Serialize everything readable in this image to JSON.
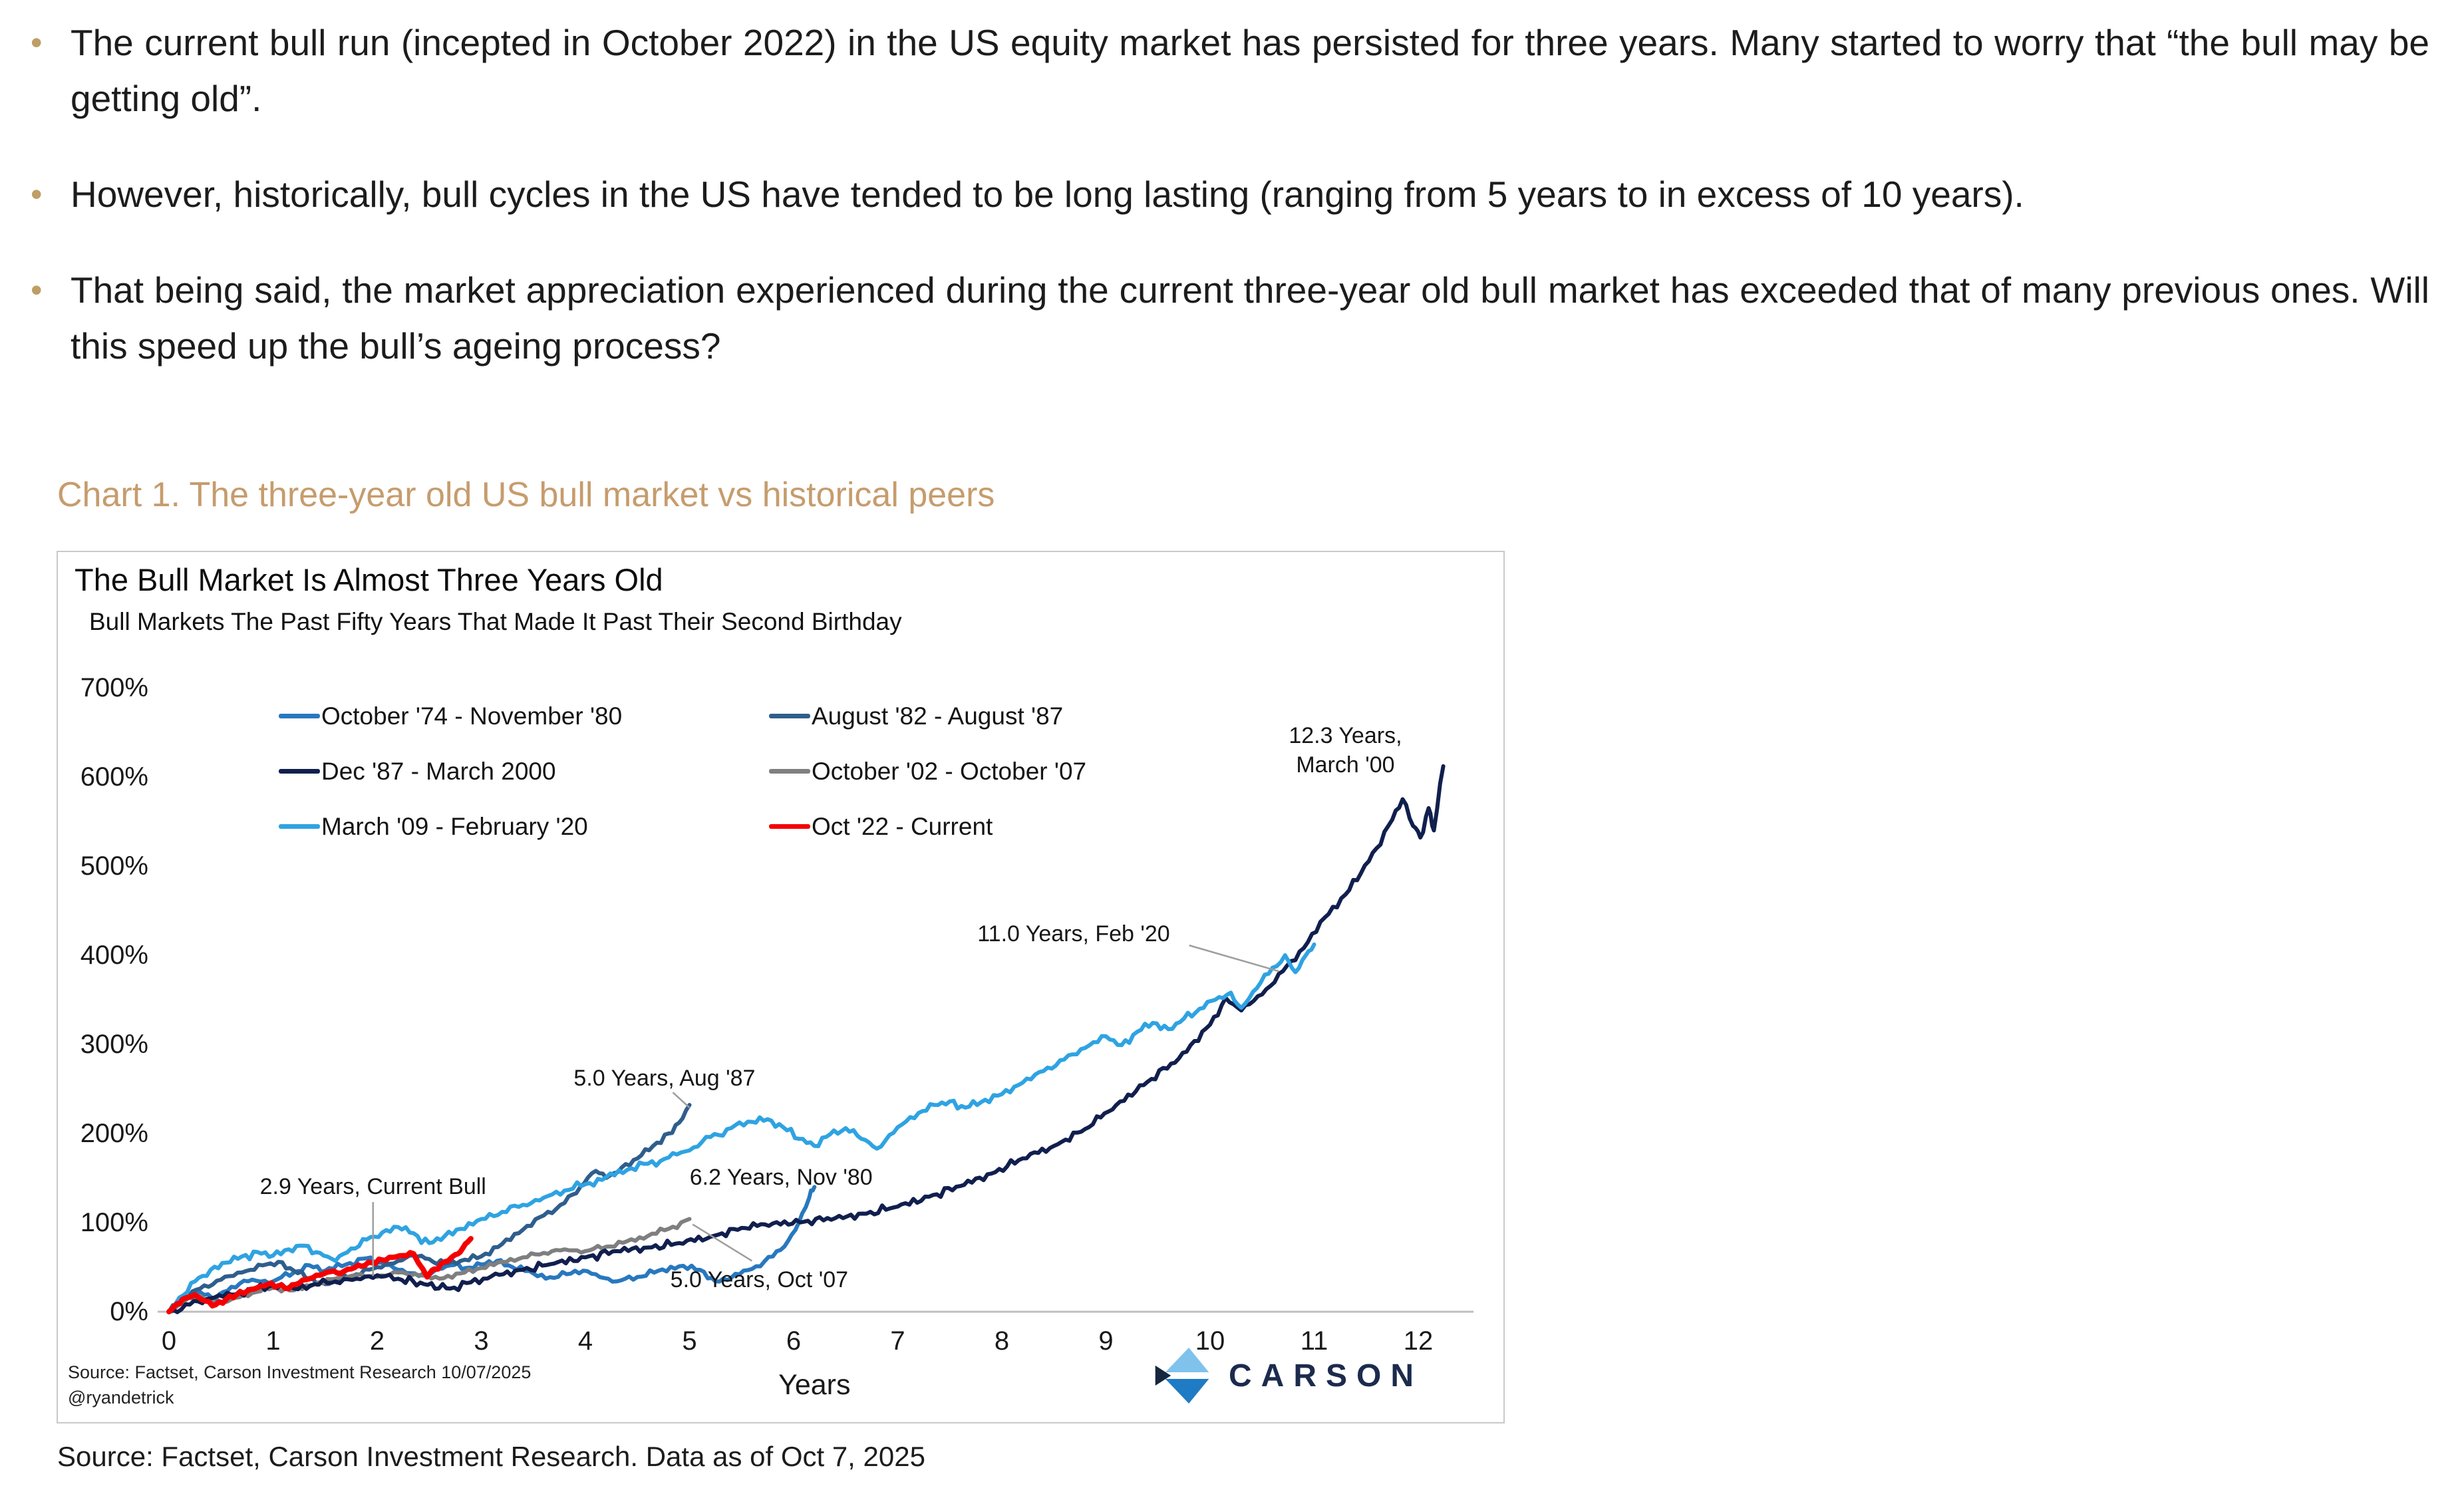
{
  "bullets": [
    "The current bull run (incepted in October 2022) in the US equity market has persisted for three years. Many started to worry that “the bull may be getting old”.",
    "However, historically, bull cycles in the US have tended to be long lasting (ranging from 5 years to in excess of 10 years).",
    "That being said, the market appreciation experienced during the current three-year old bull market has exceeded that of many previous ones. Will this speed up the bull’s ageing process?"
  ],
  "chart_caption": "Chart 1. The three-year old US bull market vs historical peers",
  "page_source": "Source: Factset, Carson Investment Research. Data as of Oct 7, 2025",
  "colors": {
    "bullet_marker": "#BE9E66",
    "caption": "#C69C6D",
    "axis_line": "#BFBFBF",
    "leader_line": "#9E9E9E",
    "chart_border": "#C9C9C9",
    "logo_navy": "#1C2B4D",
    "logo_light_blue": "#7FC2EC",
    "logo_mid_blue": "#1F7BC4",
    "logo_dark_navy": "#17263F"
  },
  "chart_data": {
    "type": "line",
    "title": "The Bull Market Is Almost Three Years Old",
    "subtitle": "Bull Markets The Past Fifty Years That Made It Past Their Second Birthday",
    "xlabel": "Years",
    "xlim": [
      0,
      12.5
    ],
    "ylim": [
      0,
      700
    ],
    "x_ticks": [
      0,
      1,
      2,
      3,
      4,
      5,
      6,
      7,
      8,
      9,
      10,
      11,
      12
    ],
    "y_ticks": [
      700,
      600,
      500,
      400,
      300,
      200,
      100,
      0
    ],
    "y_tick_suffix": "%",
    "grid": false,
    "legend_position": "inside-top two-column",
    "source_note": "Source: Factset, Carson Investment Research 10/07/2025",
    "source_handle": "@ryandetrick",
    "logo_text": "CARSON",
    "series": [
      {
        "name": "October '74 - November '80",
        "color": "#2878BE",
        "width": 6,
        "amp": 5,
        "points": [
          [
            0,
            0
          ],
          [
            0.12,
            12
          ],
          [
            0.3,
            22
          ],
          [
            0.45,
            14
          ],
          [
            0.6,
            28
          ],
          [
            0.8,
            36
          ],
          [
            1,
            34
          ],
          [
            1.2,
            44
          ],
          [
            1.35,
            52
          ],
          [
            1.5,
            46
          ],
          [
            1.7,
            53
          ],
          [
            1.9,
            60
          ],
          [
            2.05,
            55
          ],
          [
            2.2,
            47
          ],
          [
            2.4,
            40
          ],
          [
            2.55,
            46
          ],
          [
            2.7,
            52
          ],
          [
            2.85,
            49
          ],
          [
            3,
            53
          ],
          [
            3.15,
            57
          ],
          [
            3.3,
            50
          ],
          [
            3.5,
            43
          ],
          [
            3.7,
            38
          ],
          [
            3.9,
            46
          ],
          [
            4.1,
            42
          ],
          [
            4.3,
            34
          ],
          [
            4.5,
            39
          ],
          [
            4.7,
            46
          ],
          [
            4.9,
            51
          ],
          [
            5.1,
            47
          ],
          [
            5.25,
            34
          ],
          [
            5.4,
            38
          ],
          [
            5.6,
            48
          ],
          [
            5.8,
            62
          ],
          [
            5.95,
            80
          ],
          [
            6.05,
            100
          ],
          [
            6.15,
            128
          ],
          [
            6.2,
            140
          ]
        ]
      },
      {
        "name": "August '82 - August '87",
        "color": "#2F5E8C",
        "width": 6,
        "amp": 5,
        "points": [
          [
            0,
            0
          ],
          [
            0.15,
            16
          ],
          [
            0.3,
            26
          ],
          [
            0.5,
            36
          ],
          [
            0.7,
            44
          ],
          [
            0.9,
            52
          ],
          [
            1.05,
            56
          ],
          [
            1.2,
            46
          ],
          [
            1.35,
            37
          ],
          [
            1.5,
            31
          ],
          [
            1.65,
            36
          ],
          [
            1.8,
            42
          ],
          [
            2,
            50
          ],
          [
            2.2,
            57
          ],
          [
            2.35,
            63
          ],
          [
            2.5,
            59
          ],
          [
            2.65,
            54
          ],
          [
            2.8,
            57
          ],
          [
            3,
            62
          ],
          [
            3.2,
            76
          ],
          [
            3.4,
            92
          ],
          [
            3.6,
            108
          ],
          [
            3.8,
            122
          ],
          [
            3.95,
            140
          ],
          [
            4.1,
            158
          ],
          [
            4.2,
            150
          ],
          [
            4.35,
            162
          ],
          [
            4.5,
            172
          ],
          [
            4.65,
            186
          ],
          [
            4.8,
            200
          ],
          [
            4.9,
            212
          ],
          [
            5,
            232
          ]
        ]
      },
      {
        "name": "October '02 - October '07",
        "color": "#7F7F7F",
        "width": 6,
        "amp": 4,
        "points": [
          [
            0,
            0
          ],
          [
            0.15,
            12
          ],
          [
            0.3,
            18
          ],
          [
            0.45,
            9
          ],
          [
            0.6,
            14
          ],
          [
            0.8,
            21
          ],
          [
            1,
            27
          ],
          [
            1.2,
            24
          ],
          [
            1.4,
            31
          ],
          [
            1.6,
            37
          ],
          [
            1.8,
            41
          ],
          [
            2,
            39
          ],
          [
            2.2,
            44
          ],
          [
            2.4,
            41
          ],
          [
            2.6,
            37
          ],
          [
            2.8,
            43
          ],
          [
            3,
            49
          ],
          [
            3.2,
            56
          ],
          [
            3.4,
            61
          ],
          [
            3.6,
            66
          ],
          [
            3.8,
            70
          ],
          [
            4,
            68
          ],
          [
            4.2,
            73
          ],
          [
            4.4,
            79
          ],
          [
            4.6,
            85
          ],
          [
            4.8,
            93
          ],
          [
            5,
            104
          ]
        ]
      },
      {
        "name": "Dec '87 - March 2000",
        "color": "#111F4E",
        "width": 6,
        "amp": 6,
        "points": [
          [
            0,
            0
          ],
          [
            0.2,
            8
          ],
          [
            0.4,
            15
          ],
          [
            0.6,
            19
          ],
          [
            0.8,
            25
          ],
          [
            1,
            29
          ],
          [
            1.2,
            26
          ],
          [
            1.4,
            31
          ],
          [
            1.6,
            34
          ],
          [
            1.8,
            37
          ],
          [
            2,
            41
          ],
          [
            2.2,
            37
          ],
          [
            2.45,
            31
          ],
          [
            2.7,
            26
          ],
          [
            2.9,
            33
          ],
          [
            3.1,
            40
          ],
          [
            3.4,
            47
          ],
          [
            3.7,
            54
          ],
          [
            4,
            61
          ],
          [
            4.3,
            68
          ],
          [
            4.6,
            72
          ],
          [
            4.9,
            77
          ],
          [
            5.2,
            84
          ],
          [
            5.5,
            94
          ],
          [
            5.8,
            99
          ],
          [
            6.1,
            101
          ],
          [
            6.4,
            105
          ],
          [
            6.7,
            110
          ],
          [
            7,
            118
          ],
          [
            7.3,
            129
          ],
          [
            7.6,
            141
          ],
          [
            7.9,
            155
          ],
          [
            8.2,
            172
          ],
          [
            8.5,
            186
          ],
          [
            8.8,
            205
          ],
          [
            9.1,
            232
          ],
          [
            9.4,
            258
          ],
          [
            9.7,
            284
          ],
          [
            10,
            322
          ],
          [
            10.15,
            352
          ],
          [
            10.3,
            338
          ],
          [
            10.5,
            356
          ],
          [
            10.7,
            382
          ],
          [
            10.9,
            408
          ],
          [
            11.1,
            442
          ],
          [
            11.3,
            468
          ],
          [
            11.45,
            492
          ],
          [
            11.6,
            520
          ],
          [
            11.75,
            552
          ],
          [
            11.85,
            575
          ],
          [
            11.95,
            545
          ],
          [
            12.02,
            532
          ],
          [
            12.1,
            565
          ],
          [
            12.15,
            540
          ],
          [
            12.24,
            612
          ]
        ]
      },
      {
        "name": "March '09 - February '20",
        "color": "#2FA3E2",
        "width": 6,
        "amp": 6,
        "points": [
          [
            0,
            0
          ],
          [
            0.1,
            16
          ],
          [
            0.25,
            34
          ],
          [
            0.4,
            47
          ],
          [
            0.55,
            55
          ],
          [
            0.7,
            62
          ],
          [
            0.85,
            67
          ],
          [
            1,
            63
          ],
          [
            1.15,
            70
          ],
          [
            1.3,
            74
          ],
          [
            1.45,
            66
          ],
          [
            1.6,
            57
          ],
          [
            1.75,
            71
          ],
          [
            1.9,
            81
          ],
          [
            2.05,
            89
          ],
          [
            2.2,
            95
          ],
          [
            2.35,
            88
          ],
          [
            2.5,
            77
          ],
          [
            2.65,
            85
          ],
          [
            2.8,
            93
          ],
          [
            3,
            104
          ],
          [
            3.2,
            112
          ],
          [
            3.4,
            120
          ],
          [
            3.6,
            128
          ],
          [
            3.8,
            136
          ],
          [
            4,
            143
          ],
          [
            4.2,
            151
          ],
          [
            4.4,
            159
          ],
          [
            4.6,
            166
          ],
          [
            4.8,
            173
          ],
          [
            5,
            181
          ],
          [
            5.2,
            196
          ],
          [
            5.4,
            206
          ],
          [
            5.6,
            213
          ],
          [
            5.75,
            216
          ],
          [
            5.9,
            207
          ],
          [
            6.05,
            194
          ],
          [
            6.2,
            186
          ],
          [
            6.35,
            199
          ],
          [
            6.5,
            206
          ],
          [
            6.65,
            194
          ],
          [
            6.8,
            183
          ],
          [
            7,
            207
          ],
          [
            7.2,
            223
          ],
          [
            7.35,
            232
          ],
          [
            7.5,
            236
          ],
          [
            7.65,
            229
          ],
          [
            7.8,
            235
          ],
          [
            8,
            244
          ],
          [
            8.2,
            257
          ],
          [
            8.4,
            270
          ],
          [
            8.6,
            283
          ],
          [
            8.8,
            296
          ],
          [
            9,
            309
          ],
          [
            9.15,
            299
          ],
          [
            9.3,
            314
          ],
          [
            9.45,
            324
          ],
          [
            9.6,
            317
          ],
          [
            9.75,
            329
          ],
          [
            9.9,
            340
          ],
          [
            10.05,
            350
          ],
          [
            10.2,
            358
          ],
          [
            10.3,
            341
          ],
          [
            10.45,
            363
          ],
          [
            10.6,
            386
          ],
          [
            10.72,
            400
          ],
          [
            10.82,
            381
          ],
          [
            10.92,
            400
          ],
          [
            11,
            412
          ]
        ]
      },
      {
        "name": "Oct '22 - Current",
        "color": "#F40000",
        "width": 8,
        "amp": 3.5,
        "points": [
          [
            0,
            0
          ],
          [
            0.08,
            9
          ],
          [
            0.15,
            15
          ],
          [
            0.25,
            19
          ],
          [
            0.35,
            12
          ],
          [
            0.45,
            8
          ],
          [
            0.55,
            14
          ],
          [
            0.65,
            19
          ],
          [
            0.75,
            23
          ],
          [
            0.85,
            27
          ],
          [
            0.95,
            31
          ],
          [
            1.05,
            29
          ],
          [
            1.15,
            26
          ],
          [
            1.25,
            32
          ],
          [
            1.35,
            37
          ],
          [
            1.45,
            41
          ],
          [
            1.55,
            45
          ],
          [
            1.65,
            43
          ],
          [
            1.75,
            48
          ],
          [
            1.85,
            51
          ],
          [
            1.95,
            55
          ],
          [
            2.05,
            58
          ],
          [
            2.15,
            61
          ],
          [
            2.25,
            63
          ],
          [
            2.35,
            65
          ],
          [
            2.42,
            51
          ],
          [
            2.48,
            39
          ],
          [
            2.55,
            48
          ],
          [
            2.65,
            56
          ],
          [
            2.75,
            64
          ],
          [
            2.82,
            71
          ],
          [
            2.9,
            82
          ]
        ]
      }
    ],
    "legend_order": [
      0,
      1,
      3,
      2,
      4,
      5
    ],
    "annotations": [
      {
        "lines": [
          "12.3 Years,",
          "March '00"
        ],
        "x": 11.3,
        "y": 630
      },
      {
        "lines": [
          "11.0 Years, Feb '20"
        ],
        "x": 8.69,
        "y": 424,
        "leader": [
          [
            9.8,
            411
          ],
          [
            10.66,
            382
          ]
        ]
      },
      {
        "lines": [
          "5.0 Years, Aug '87"
        ],
        "x": 4.76,
        "y": 262,
        "leader": [
          [
            4.84,
            246
          ],
          [
            5.0,
            229
          ]
        ]
      },
      {
        "lines": [
          "6.2 Years, Nov '80"
        ],
        "x": 5.88,
        "y": 151
      },
      {
        "lines": [
          "5.0 Years, Oct '07"
        ],
        "x": 5.67,
        "y": 36,
        "leader": [
          [
            5.03,
            98
          ],
          [
            5.6,
            57
          ]
        ]
      },
      {
        "lines": [
          "2.9 Years, Current Bull"
        ],
        "x": 1.96,
        "y": 140,
        "leader": [
          [
            1.96,
            123
          ],
          [
            1.96,
            40
          ]
        ]
      }
    ]
  }
}
